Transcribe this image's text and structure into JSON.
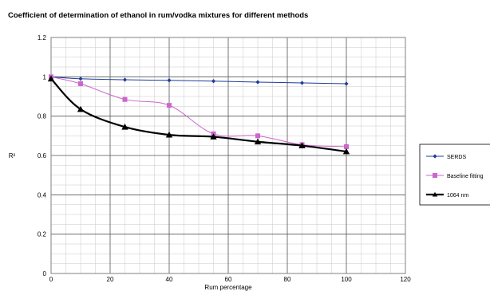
{
  "chart_data": {
    "type": "line",
    "title": "Coefficient of determination of ethanol in rum/vodka mixtures for different methods",
    "xlabel": "Rum percentage",
    "ylabel": "R²",
    "xlim": [
      0,
      120
    ],
    "ylim": [
      0,
      1.2
    ],
    "xticks": [
      "0",
      "20",
      "40",
      "60",
      "80",
      "100",
      "120"
    ],
    "yticks": [
      "0",
      "0.2",
      "0.4",
      "0.6",
      "0.8",
      "1",
      "1.2"
    ],
    "grid": true,
    "legend_position": "right",
    "series": [
      {
        "name": "SERDS",
        "color": "#1f3c99",
        "marker": "diamond",
        "x": [
          0,
          10,
          25,
          40,
          55,
          70,
          85,
          100
        ],
        "y": [
          1.0,
          0.99,
          0.985,
          0.982,
          0.978,
          0.973,
          0.969,
          0.965
        ]
      },
      {
        "name": "Baseline fitting",
        "color": "#cc66cc",
        "marker": "square",
        "x": [
          0,
          10,
          25,
          40,
          55,
          70,
          85,
          100
        ],
        "y": [
          1.0,
          0.965,
          0.885,
          0.855,
          0.71,
          0.7,
          0.655,
          0.645
        ]
      },
      {
        "name": "1064 nm",
        "color": "#000000",
        "marker": "triangle",
        "x": [
          0,
          10,
          25,
          40,
          55,
          70,
          85,
          100
        ],
        "y": [
          0.99,
          0.835,
          0.745,
          0.705,
          0.695,
          0.67,
          0.65,
          0.62
        ]
      }
    ]
  }
}
